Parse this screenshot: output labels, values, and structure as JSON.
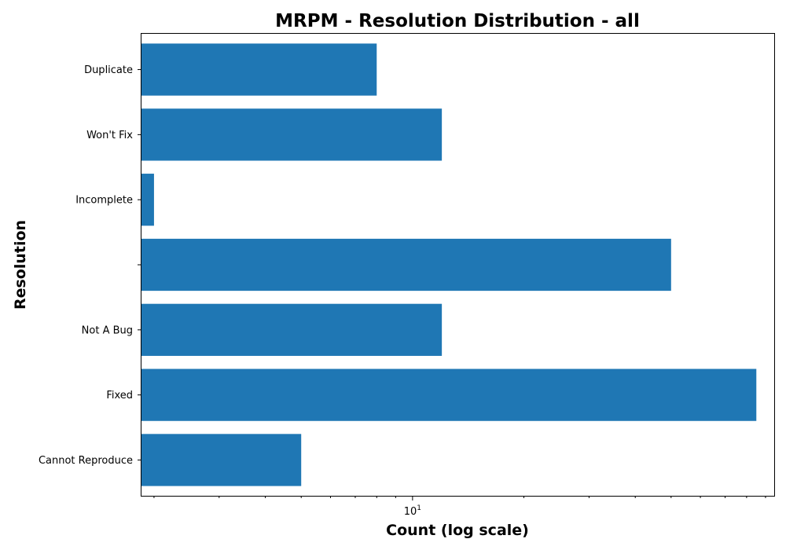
{
  "chart_data": {
    "type": "bar",
    "orientation": "horizontal",
    "title": "MRPM - Resolution Distribution - all",
    "xlabel": "Count (log scale)",
    "ylabel": "Resolution",
    "x_scale": "log",
    "xlim": [
      1.85,
      95
    ],
    "x_major_ticks": [
      {
        "value": 10,
        "base": "10",
        "exp": "1"
      }
    ],
    "x_minor_ticks": [
      2,
      3,
      4,
      5,
      6,
      7,
      8,
      9,
      20,
      30,
      40,
      50,
      60,
      70,
      80,
      90
    ],
    "categories": [
      "Cannot Reproduce",
      "Fixed",
      "Not A Bug",
      "",
      "Incomplete",
      "Won't Fix",
      "Duplicate"
    ],
    "values": [
      5,
      85,
      12,
      50,
      2,
      12,
      8
    ],
    "bar_color": "#1f77b4",
    "grid": false
  }
}
